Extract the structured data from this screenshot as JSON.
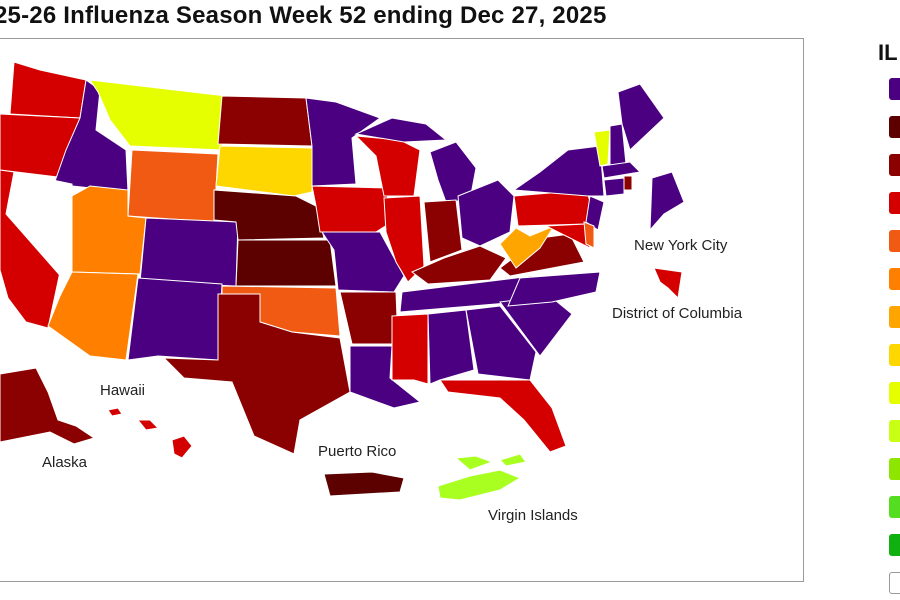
{
  "title": "25-26 Influenza Season Week 52 ending Dec 27, 2025",
  "labels": {
    "new_york_city": "New York City",
    "district_of_columbia": "District of Columbia",
    "hawaii": "Hawaii",
    "alaska": "Alaska",
    "puerto_rico": "Puerto Rico",
    "virgin_islands": "Virgin Islands"
  },
  "legend": {
    "title": "IL",
    "swatches": [
      "#4b0082",
      "#5c0000",
      "#8b0000",
      "#d40000",
      "#f05a12",
      "#ff8000",
      "#ffa500",
      "#ffd700",
      "#e6ff00",
      "#c8ff14",
      "#8ee600",
      "#55dd22",
      "#10b010",
      "#ffffff"
    ]
  },
  "colors": {
    "very_high_purple": "#4b0082",
    "very_high_darkest": "#5c0000",
    "very_high_dark": "#8b0000",
    "high_red": "#d40000",
    "high_orange_red": "#f05a12",
    "moderate_orange": "#ff8000",
    "moderate_amber": "#ffa500",
    "low_yellow": "#ffd700",
    "low_yellow_green": "#e6ff00",
    "minimal_lime": "#a8ff20",
    "insufficient_data": "#ffffff"
  }
}
